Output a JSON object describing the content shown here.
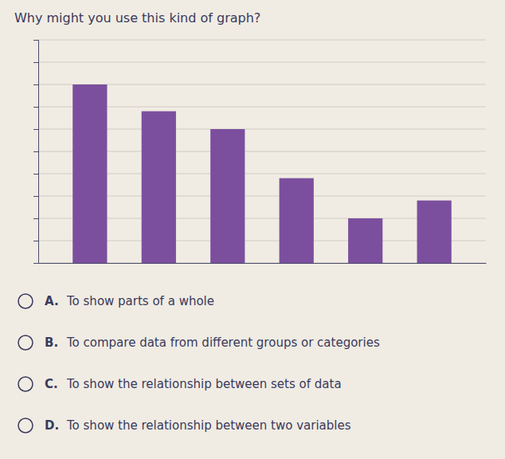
{
  "chart_data": {
    "type": "bar",
    "title": "Why might you use this kind of graph?",
    "categories": [
      null,
      null,
      null,
      null,
      null,
      null
    ],
    "values": [
      8,
      6.8,
      6.0,
      3.8,
      2.0,
      2.8
    ],
    "color": "#7b4f9e",
    "ylim": [
      0,
      10
    ],
    "yticks": [
      0,
      1,
      2,
      3,
      4,
      5,
      6,
      7,
      8,
      9,
      10
    ],
    "grid": true,
    "tick_labels": false,
    "annotations": [
      {
        "letter": "A.",
        "text": "To show parts of a whole"
      },
      {
        "letter": "B.",
        "text": "To compare data from different groups or categories"
      },
      {
        "letter": "C.",
        "text": "To show the relationship between sets of data"
      },
      {
        "letter": "D.",
        "text": "To show the relationship between two variables"
      }
    ]
  }
}
